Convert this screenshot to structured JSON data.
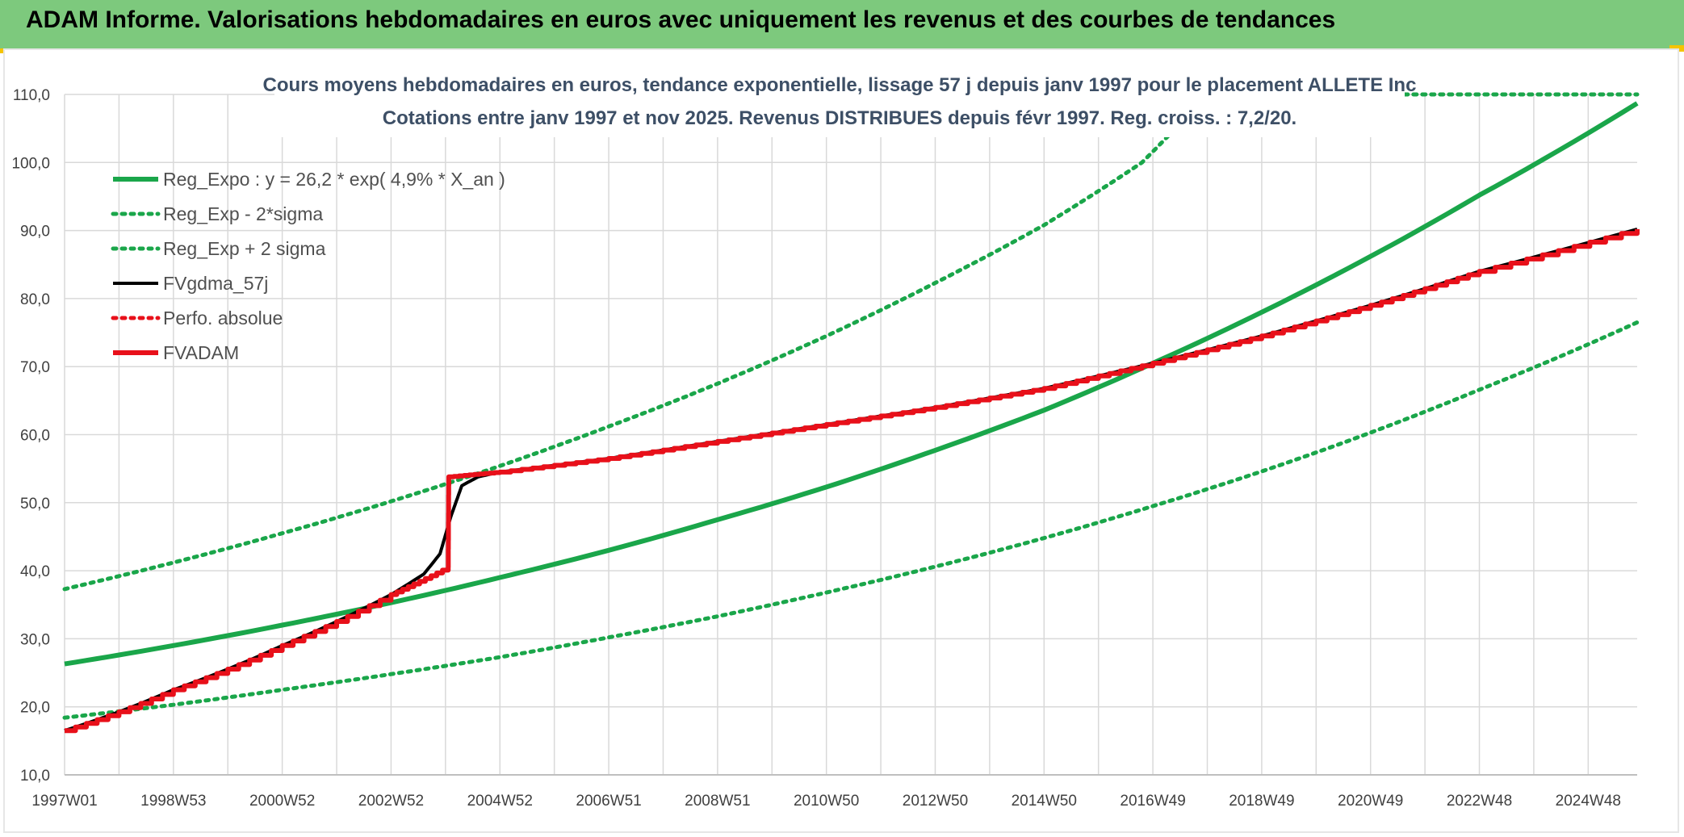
{
  "banner": {
    "title": "ADAM Informe. Valorisations hebdomadaires en euros avec uniquement les revenus et des courbes de tendances"
  },
  "colors": {
    "banner_bg": "#7dc97d",
    "corner_accent": "#f5c400",
    "green": "#1aa64a",
    "red": "#e8101a",
    "black": "#000000",
    "grid": "#d9d9d9"
  },
  "chart_data": {
    "type": "line",
    "title_lines": [
      "Cours moyens hebdomadaires en euros, tendance exponentielle, lissage 57 j depuis janv 1997 pour le placement ALLETE Inc",
      "Cotations entre janv 1997 et nov 2025. Revenus DISTRIBUES depuis févr 1997. Reg. croiss. : 7,2/20."
    ],
    "x_start": 1997.0,
    "x_end": 2025.9,
    "x_ticks": [
      "1997W01",
      "1998W53",
      "2000W52",
      "2002W52",
      "2004W52",
      "2006W51",
      "2008W51",
      "2010W50",
      "2012W50",
      "2014W50",
      "2016W49",
      "2018W49",
      "2020W49",
      "2022W48",
      "2024W48"
    ],
    "ylim": [
      10,
      110
    ],
    "y_ticks": [
      "10,0",
      "20,0",
      "30,0",
      "40,0",
      "50,0",
      "60,0",
      "70,0",
      "80,0",
      "90,0",
      "100,0",
      "110,0"
    ],
    "grid": true,
    "legend_position": "top-left",
    "legend": [
      {
        "name": "Reg_Expo : y = 26,2 * exp( 4,9% *  X_an )",
        "color": "#1aa64a",
        "style": "solid-thick"
      },
      {
        "name": "Reg_Exp - 2*sigma",
        "color": "#1aa64a",
        "style": "dotted"
      },
      {
        "name": "Reg_Exp + 2 sigma",
        "color": "#1aa64a",
        "style": "dotted"
      },
      {
        "name": "FVgdma_57j",
        "color": "#000000",
        "style": "solid"
      },
      {
        "name": "Perfo. absolue",
        "color": "#e8101a",
        "style": "dotted"
      },
      {
        "name": "FVADAM",
        "color": "#e8101a",
        "style": "solid-thick"
      }
    ],
    "series": [
      {
        "name": "Reg_Expo : y = 26,2 * exp( 4,9% *  X_an )",
        "x": [
          1997,
          1999,
          2001,
          2003,
          2005,
          2007,
          2009,
          2011,
          2013,
          2015,
          2017,
          2019,
          2021,
          2023,
          2025.9
        ],
        "y": [
          26.3,
          29.0,
          32.0,
          35.3,
          39.0,
          43.0,
          47.5,
          52.3,
          57.7,
          63.6,
          70.5,
          78.0,
          86.2,
          95.2,
          108.7
        ]
      },
      {
        "name": "Reg_Exp - 2*sigma",
        "x": [
          1997,
          1999,
          2001,
          2003,
          2005,
          2007,
          2009,
          2011,
          2013,
          2015,
          2017,
          2019,
          2021,
          2023,
          2025.9
        ],
        "y": [
          18.4,
          20.3,
          22.5,
          24.8,
          27.3,
          30.2,
          33.3,
          36.8,
          40.6,
          44.8,
          49.5,
          54.6,
          60.3,
          66.6,
          76.5
        ]
      },
      {
        "name": "Reg_Exp + 2 sigma",
        "x": [
          1997,
          1999,
          2001,
          2003,
          2005,
          2007,
          2009,
          2011,
          2013,
          2015,
          2016.8,
          2018,
          2025.9
        ],
        "y": [
          37.3,
          41.2,
          45.5,
          50.2,
          55.4,
          61.2,
          67.5,
          74.5,
          82.3,
          90.8,
          100.0,
          110.0,
          110.0
        ]
      },
      {
        "name": "FVgdma_57j",
        "x": [
          1997,
          1999,
          2001,
          2003,
          2003.6,
          2003.9,
          2004.1,
          2004.3,
          2004.6,
          2005,
          2007,
          2009,
          2011,
          2013,
          2015,
          2017,
          2019,
          2021,
          2023,
          2025.9
        ],
        "y": [
          16.5,
          22.5,
          29.0,
          36.5,
          39.5,
          42.5,
          48.0,
          52.5,
          53.8,
          54.5,
          56.5,
          59.0,
          61.5,
          64.0,
          66.8,
          70.5,
          74.5,
          79.0,
          84.0,
          90.2
        ]
      },
      {
        "name": "FVADAM",
        "x": [
          1997,
          1999,
          2001,
          2003,
          2004.05,
          2004.06,
          2005,
          2007,
          2009,
          2011,
          2013,
          2015,
          2017,
          2019,
          2021,
          2023,
          2025.9
        ],
        "y": [
          16.5,
          22.5,
          29.0,
          36.5,
          40.5,
          53.8,
          54.5,
          56.5,
          59.0,
          61.5,
          64.0,
          66.8,
          70.5,
          74.5,
          79.0,
          84.0,
          90.2
        ]
      }
    ]
  }
}
